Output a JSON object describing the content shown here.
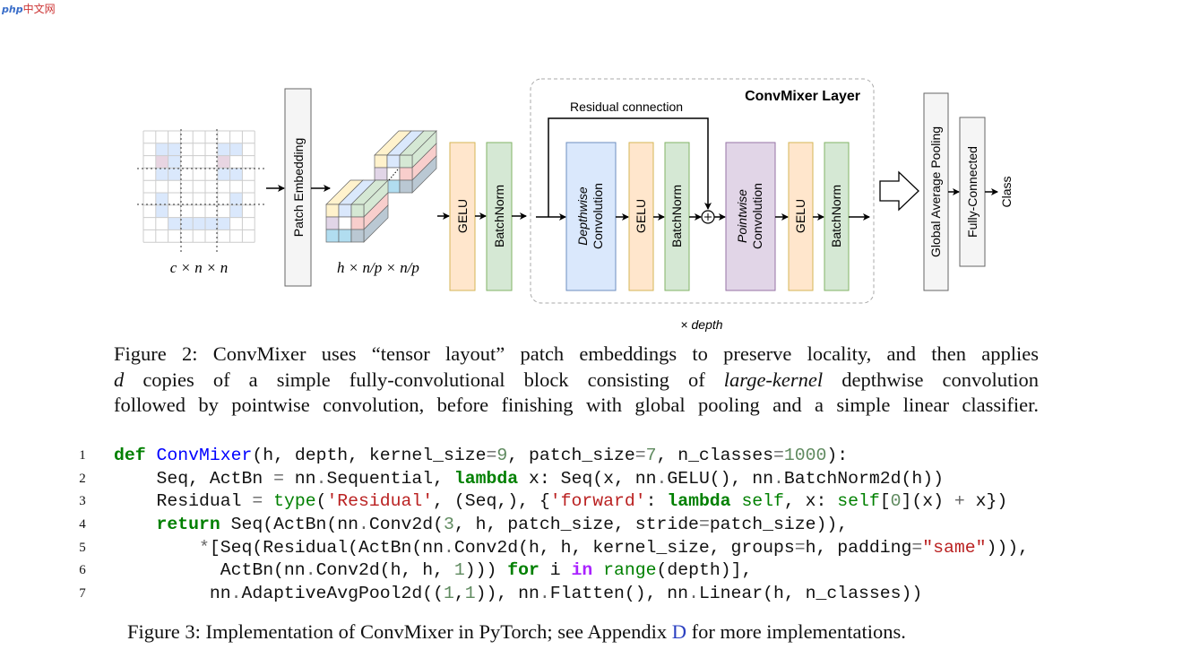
{
  "watermark": "php中文网",
  "figure2": {
    "input_label": "c × n × n",
    "patch_embedding": "Patch Embedding",
    "embedded_label": "h × n/p × n/p",
    "gelu": "GELU",
    "batchnorm": "BatchNorm",
    "layer_title": "ConvMixer Layer",
    "residual_label": "Residual connection",
    "depthwise_italic": "Depthwise",
    "pointwise_italic": "Pointwise",
    "convolution": "Convolution",
    "depth_prefix": "×",
    "depth_label": "depth",
    "gap": "Global Average Pooling",
    "fc": "Fully-Connected",
    "class": "Class",
    "colors": {
      "gelu_fill": "#ffe6cc",
      "gelu_stroke": "#d6b656",
      "bn_fill": "#d5e8d4",
      "bn_stroke": "#82b366",
      "depthwise_fill": "#dae8fc",
      "depthwise_stroke": "#6c8ebf",
      "pointwise_fill": "#e1d5e7",
      "pointwise_stroke": "#9673a6",
      "grey_fill": "#f5f5f5",
      "grey_stroke": "#666666"
    },
    "caption": {
      "l1": "Figure 2: ConvMixer uses “tensor layout” patch embeddings to preserve locality, and then applies",
      "l2a": "d",
      "l2b": " copies of a simple fully-convolutional block consisting of ",
      "l2c": "large-kernel",
      "l2d": " depthwise convolution",
      "l3": "followed by pointwise convolution, before finishing with global pooling and a simple linear classifier."
    }
  },
  "code": {
    "line_numbers": [
      "1",
      "2",
      "3",
      "4",
      "5",
      "6",
      "7"
    ],
    "lines": [
      [
        [
          "def",
          "k"
        ],
        [
          " ",
          ""
        ],
        [
          "ConvMixer",
          "f"
        ],
        [
          "(h, depth, kernel_size",
          ""
        ],
        [
          "=",
          "o"
        ],
        [
          "9",
          "n"
        ],
        [
          ", patch_size",
          ""
        ],
        [
          "=",
          "o"
        ],
        [
          "7",
          "n"
        ],
        [
          ", n_classes",
          ""
        ],
        [
          "=",
          "o"
        ],
        [
          "1000",
          "n"
        ],
        [
          "):",
          ""
        ]
      ],
      [
        [
          "    Seq, ActBn ",
          ""
        ],
        [
          "=",
          "o"
        ],
        [
          " nn",
          ""
        ],
        [
          ".",
          "o"
        ],
        [
          "Sequential, ",
          ""
        ],
        [
          "lambda",
          "k"
        ],
        [
          " x: Seq(x, nn",
          ""
        ],
        [
          ".",
          "o"
        ],
        [
          "GELU(), nn",
          ""
        ],
        [
          ".",
          "o"
        ],
        [
          "BatchNorm2d(h))",
          ""
        ]
      ],
      [
        [
          "    Residual ",
          ""
        ],
        [
          "=",
          "o"
        ],
        [
          " ",
          ""
        ],
        [
          "type",
          "b"
        ],
        [
          "(",
          ""
        ],
        [
          "'Residual'",
          "s"
        ],
        [
          ", (Seq,), {",
          ""
        ],
        [
          "'forward'",
          "s"
        ],
        [
          ": ",
          ""
        ],
        [
          "lambda",
          "k"
        ],
        [
          " ",
          ""
        ],
        [
          "self",
          "b"
        ],
        [
          ", x: ",
          ""
        ],
        [
          "self",
          "b"
        ],
        [
          "[",
          ""
        ],
        [
          "0",
          "n"
        ],
        [
          "](x) ",
          ""
        ],
        [
          "+",
          "o"
        ],
        [
          " x})",
          ""
        ]
      ],
      [
        [
          "    ",
          ""
        ],
        [
          "return",
          "k"
        ],
        [
          " Seq(ActBn(nn",
          ""
        ],
        [
          ".",
          "o"
        ],
        [
          "Conv2d(",
          ""
        ],
        [
          "3",
          "n"
        ],
        [
          ", h, patch_size, stride",
          ""
        ],
        [
          "=",
          "o"
        ],
        [
          "patch_size)),",
          ""
        ]
      ],
      [
        [
          "        ",
          ""
        ],
        [
          "*",
          "o"
        ],
        [
          "[Seq(Residual(ActBn(nn",
          ""
        ],
        [
          ".",
          "o"
        ],
        [
          "Conv2d(h, h, kernel_size, groups",
          ""
        ],
        [
          "=",
          "o"
        ],
        [
          "h, padding",
          ""
        ],
        [
          "=",
          "o"
        ],
        [
          "\"same\"",
          "s"
        ],
        [
          "))),",
          ""
        ]
      ],
      [
        [
          "          ActBn(nn",
          ""
        ],
        [
          ".",
          "o"
        ],
        [
          "Conv2d(h, h, ",
          ""
        ],
        [
          "1",
          "n"
        ],
        [
          "))) ",
          ""
        ],
        [
          "for",
          "k"
        ],
        [
          " i ",
          ""
        ],
        [
          "in",
          "w"
        ],
        [
          " ",
          ""
        ],
        [
          "range",
          "b"
        ],
        [
          "(depth)],",
          ""
        ]
      ],
      [
        [
          "         nn",
          ""
        ],
        [
          ".",
          "o"
        ],
        [
          "AdaptiveAvgPool2d((",
          ""
        ],
        [
          "1",
          "n"
        ],
        [
          ",",
          ""
        ],
        [
          "1",
          "n"
        ],
        [
          ")), nn",
          ""
        ],
        [
          ".",
          "o"
        ],
        [
          "Flatten(), nn",
          ""
        ],
        [
          ".",
          "o"
        ],
        [
          "Linear(h, n_classes))",
          ""
        ]
      ]
    ]
  },
  "figure3": {
    "caption_a": "Figure 3: Implementation of ConvMixer in PyTorch; see Appendix ",
    "caption_link": "D",
    "caption_b": " for more implementations."
  }
}
